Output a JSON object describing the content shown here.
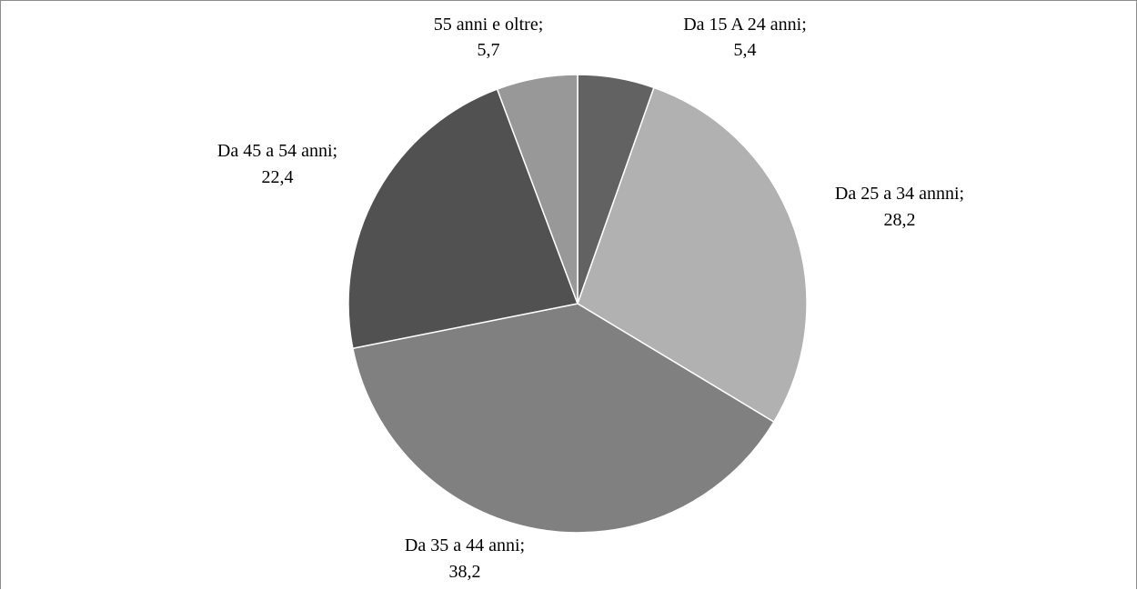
{
  "chart_data": {
    "type": "pie",
    "start_angle": "12 o'clock",
    "direction": "clockwise",
    "slices": [
      {
        "name": "Da 15 A 24 anni",
        "value": 5.4,
        "label": "Da 15 A 24 anni;",
        "value_label": "5,4",
        "color": "#626262"
      },
      {
        "name": "Da 25 a 34 annni",
        "value": 28.2,
        "label": "Da 25 a 34 annni;",
        "value_label": "28,2",
        "color": "#b1b1b1"
      },
      {
        "name": "Da 35 a 44 anni",
        "value": 38.2,
        "label": "Da 35 a 44 anni;",
        "value_label": "38,2",
        "color": "#808080"
      },
      {
        "name": "Da 45 a 54 anni",
        "value": 22.4,
        "label": "Da 45 a 54 anni;",
        "value_label": "22,4",
        "color": "#515151"
      },
      {
        "name": "55 anni e oltre",
        "value": 5.7,
        "label": "55 anni e oltre;",
        "value_label": "5,7",
        "color": "#989898"
      }
    ],
    "title": "",
    "legend": "none",
    "slice_border_color": "#ffffff"
  }
}
